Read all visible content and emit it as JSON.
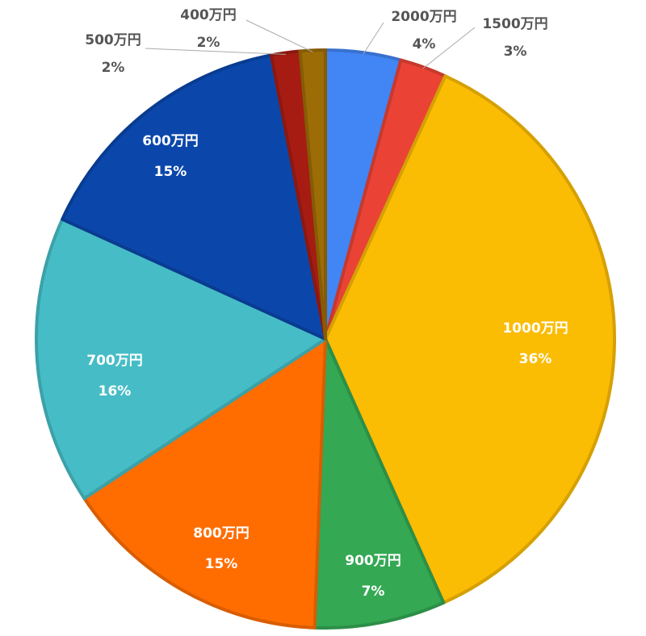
{
  "chart_data": {
    "type": "pie",
    "start": "top",
    "direction": "clockwise",
    "slices": [
      {
        "label": "2000万円",
        "percent_label": "4%",
        "value": 4.2,
        "color": "#4285F4",
        "label_pos": "outside"
      },
      {
        "label": "1500万円",
        "percent_label": "3%",
        "value": 2.6,
        "color": "#EA4335",
        "label_pos": "outside"
      },
      {
        "label": "1000万円",
        "percent_label": "36%",
        "value": 36.5,
        "color": "#FBBC04",
        "label_pos": "inside"
      },
      {
        "label": "900万円",
        "percent_label": "7%",
        "value": 7.3,
        "color": "#34A853",
        "label_pos": "inside"
      },
      {
        "label": "800万円",
        "percent_label": "15%",
        "value": 15.1,
        "color": "#FF6D01",
        "label_pos": "inside"
      },
      {
        "label": "700万円",
        "percent_label": "16%",
        "value": 16.1,
        "color": "#46BDC6",
        "label_pos": "inside"
      },
      {
        "label": "600万円",
        "percent_label": "15%",
        "value": 15.2,
        "color": "#0B47AB",
        "label_pos": "inside"
      },
      {
        "label": "500万円",
        "percent_label": "2%",
        "value": 1.6,
        "color": "#A61C13",
        "label_pos": "outside"
      },
      {
        "label": "400万円",
        "percent_label": "2%",
        "value": 1.4,
        "color": "#9C6C06",
        "label_pos": "outside"
      }
    ]
  }
}
